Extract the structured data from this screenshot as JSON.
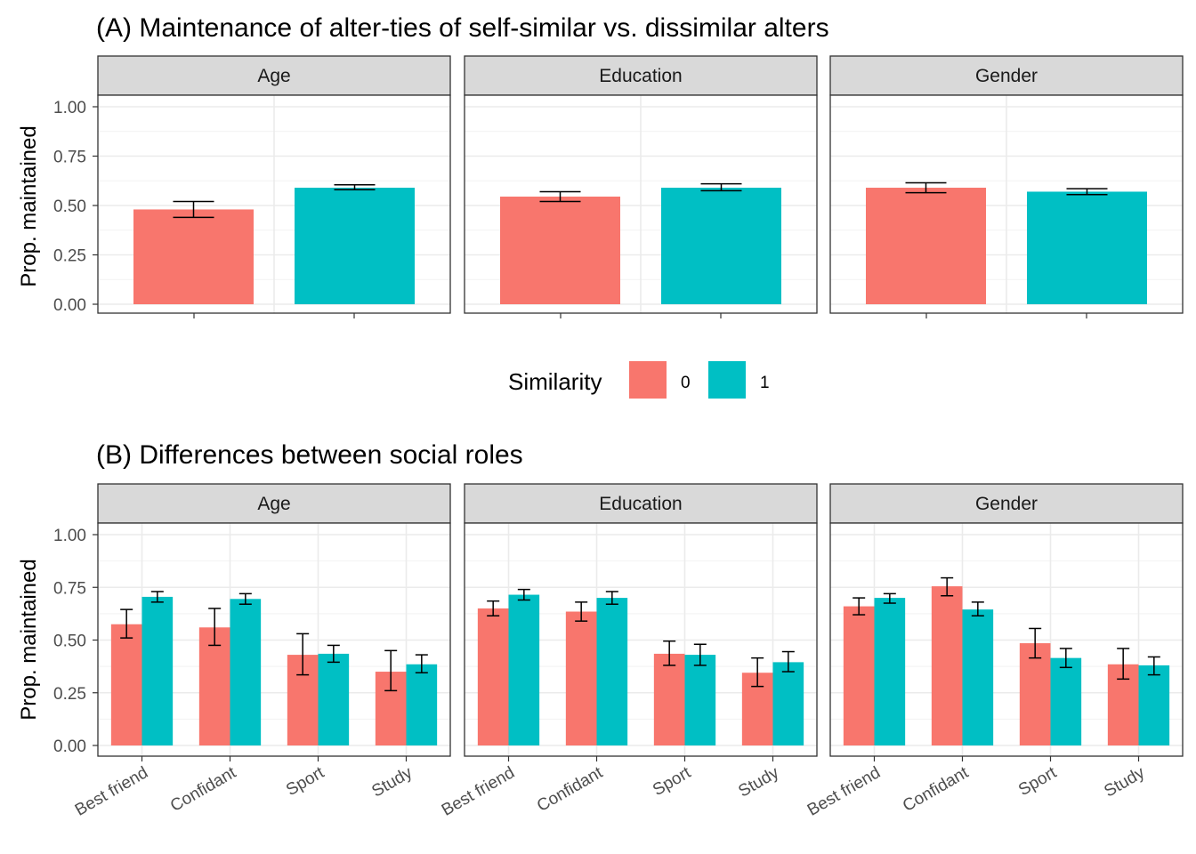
{
  "colors": {
    "similar_0": "#F8766D",
    "similar_1": "#00BFC4"
  },
  "legend": {
    "title": "Similarity",
    "items": [
      "0",
      "1"
    ]
  },
  "chart_data": [
    {
      "type": "bar",
      "title": "(A) Maintenance of alter-ties of self-similar vs. dissimilar alters",
      "ylabel": "Prop. maintained",
      "xlabel": "",
      "ylim": [
        0,
        1
      ],
      "yticks": [
        "0.00",
        "0.25",
        "0.50",
        "0.75",
        "1.00"
      ],
      "facets": [
        {
          "label": "Age",
          "series": [
            {
              "name": "0",
              "values": [
                0.48
              ],
              "err": [
                [
                  0.44,
                  0.52
                ]
              ]
            },
            {
              "name": "1",
              "values": [
                0.59
              ],
              "err": [
                [
                  0.58,
                  0.605
                ]
              ]
            }
          ]
        },
        {
          "label": "Education",
          "series": [
            {
              "name": "0",
              "values": [
                0.545
              ],
              "err": [
                [
                  0.52,
                  0.57
                ]
              ]
            },
            {
              "name": "1",
              "values": [
                0.59
              ],
              "err": [
                [
                  0.575,
                  0.61
                ]
              ]
            }
          ]
        },
        {
          "label": "Gender",
          "series": [
            {
              "name": "0",
              "values": [
                0.59
              ],
              "err": [
                [
                  0.565,
                  0.615
                ]
              ]
            },
            {
              "name": "1",
              "values": [
                0.57
              ],
              "err": [
                [
                  0.555,
                  0.585
                ]
              ]
            }
          ]
        }
      ]
    },
    {
      "type": "bar",
      "title": "(B) Differences between social roles",
      "ylabel": "Prop. maintained",
      "xlabel": "",
      "ylim": [
        0,
        1
      ],
      "yticks": [
        "0.00",
        "0.25",
        "0.50",
        "0.75",
        "1.00"
      ],
      "categories": [
        "Best friend",
        "Confidant",
        "Sport",
        "Study"
      ],
      "facets": [
        {
          "label": "Age",
          "series": [
            {
              "name": "0",
              "values": [
                0.575,
                0.56,
                0.43,
                0.35
              ],
              "err": [
                [
                  0.51,
                  0.645
                ],
                [
                  0.475,
                  0.65
                ],
                [
                  0.335,
                  0.53
                ],
                [
                  0.26,
                  0.45
                ]
              ]
            },
            {
              "name": "1",
              "values": [
                0.705,
                0.695,
                0.435,
                0.385
              ],
              "err": [
                [
                  0.68,
                  0.73
                ],
                [
                  0.67,
                  0.72
                ],
                [
                  0.395,
                  0.475
                ],
                [
                  0.345,
                  0.43
                ]
              ]
            }
          ]
        },
        {
          "label": "Education",
          "series": [
            {
              "name": "0",
              "values": [
                0.65,
                0.635,
                0.435,
                0.345
              ],
              "err": [
                [
                  0.615,
                  0.685
                ],
                [
                  0.59,
                  0.68
                ],
                [
                  0.38,
                  0.495
                ],
                [
                  0.28,
                  0.415
                ]
              ]
            },
            {
              "name": "1",
              "values": [
                0.715,
                0.7,
                0.43,
                0.395
              ],
              "err": [
                [
                  0.69,
                  0.74
                ],
                [
                  0.67,
                  0.73
                ],
                [
                  0.38,
                  0.48
                ],
                [
                  0.35,
                  0.445
                ]
              ]
            }
          ]
        },
        {
          "label": "Gender",
          "series": [
            {
              "name": "0",
              "values": [
                0.66,
                0.755,
                0.485,
                0.385
              ],
              "err": [
                [
                  0.62,
                  0.7
                ],
                [
                  0.71,
                  0.795
                ],
                [
                  0.415,
                  0.555
                ],
                [
                  0.315,
                  0.46
                ]
              ]
            },
            {
              "name": "1",
              "values": [
                0.7,
                0.645,
                0.415,
                0.38
              ],
              "err": [
                [
                  0.675,
                  0.72
                ],
                [
                  0.615,
                  0.68
                ],
                [
                  0.37,
                  0.46
                ],
                [
                  0.335,
                  0.42
                ]
              ]
            }
          ]
        }
      ]
    }
  ]
}
